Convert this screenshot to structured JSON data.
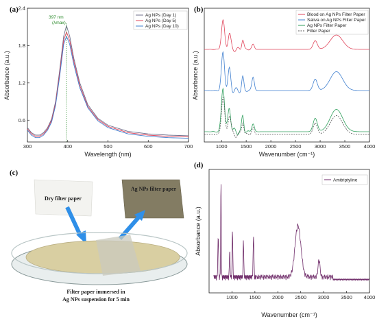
{
  "panels": {
    "a": {
      "label": "(a)"
    },
    "b": {
      "label": "(b)"
    },
    "c": {
      "label": "(c)"
    },
    "d": {
      "label": "(d)"
    }
  },
  "chart_data": [
    {
      "type": "line",
      "panel": "(a)",
      "xlabel": "Wavelength (nm)",
      "ylabel": "Absorbance (a.u.)",
      "xlim": [
        300,
        700
      ],
      "ylim": [
        0.25,
        2.4
      ],
      "xticks": [
        300,
        400,
        500,
        600,
        700
      ],
      "yticks": [
        0.6,
        1.2,
        1.8,
        2.4
      ],
      "legend_position": "top-right",
      "annotation": {
        "text": "397 nm",
        "subtext": "(λmax)",
        "x": 397
      },
      "series": [
        {
          "name": "Ag NPs (Day 1)",
          "color": "#6d6d8a",
          "x": [
            300,
            310,
            320,
            330,
            340,
            350,
            360,
            370,
            380,
            390,
            397,
            405,
            415,
            430,
            450,
            475,
            500,
            550,
            600,
            650,
            700
          ],
          "y": [
            0.48,
            0.4,
            0.36,
            0.36,
            0.4,
            0.48,
            0.62,
            0.9,
            1.4,
            1.95,
            2.12,
            1.95,
            1.6,
            1.2,
            0.85,
            0.63,
            0.52,
            0.42,
            0.38,
            0.36,
            0.35
          ]
        },
        {
          "name": "Ag NPs (Day 5)",
          "color": "#e0455b",
          "x": [
            300,
            310,
            320,
            330,
            340,
            350,
            360,
            370,
            380,
            390,
            397,
            405,
            415,
            430,
            450,
            475,
            500,
            550,
            600,
            650,
            700
          ],
          "y": [
            0.46,
            0.38,
            0.34,
            0.34,
            0.38,
            0.46,
            0.6,
            0.87,
            1.35,
            1.88,
            2.02,
            1.88,
            1.55,
            1.16,
            0.82,
            0.61,
            0.5,
            0.4,
            0.36,
            0.34,
            0.33
          ]
        },
        {
          "name": "Ag NPs (Day 10)",
          "color": "#3f7fcf",
          "x": [
            300,
            310,
            320,
            330,
            340,
            350,
            360,
            370,
            380,
            390,
            397,
            405,
            415,
            430,
            450,
            475,
            500,
            550,
            600,
            650,
            700
          ],
          "y": [
            0.44,
            0.36,
            0.32,
            0.32,
            0.36,
            0.44,
            0.57,
            0.84,
            1.3,
            1.82,
            1.95,
            1.82,
            1.5,
            1.12,
            0.8,
            0.59,
            0.48,
            0.38,
            0.34,
            0.32,
            0.31
          ]
        }
      ]
    },
    {
      "type": "line",
      "panel": "(b)",
      "xlabel": "Wavenumber (cm⁻¹)",
      "ylabel": "Absorbance (a.u.)",
      "xlim": [
        650,
        4000
      ],
      "xticks": [
        1000,
        1500,
        2000,
        2500,
        3000,
        3500,
        4000
      ],
      "yticks_shown": false,
      "legend_position": "top-right",
      "series": [
        {
          "name": "Blood on Ag NPs Filter Paper",
          "color": "#e0455b",
          "dash": false
        },
        {
          "name": "Saliva on Ag NPs Filter Paper",
          "color": "#3f7fcf",
          "dash": false
        },
        {
          "name": "Ag NPs Filter Paper",
          "color": "#2e9e5b",
          "dash": false
        },
        {
          "name": "Filter Paper",
          "color": "#555555",
          "dash": true
        }
      ]
    },
    {
      "type": "line",
      "panel": "(d)",
      "xlabel": "Wavenumber (cm⁻¹)",
      "ylabel": "Absorbance (a.u.)",
      "xlim": [
        500,
        4000
      ],
      "xticks": [
        1000,
        1500,
        2000,
        2500,
        3000,
        3500,
        4000
      ],
      "yticks_shown": false,
      "legend_position": "top-right",
      "series": [
        {
          "name": "Amitriptyline",
          "color": "#6e2a68"
        }
      ]
    }
  ],
  "photo": {
    "dry_label": "Dry filter paper",
    "ag_label": "Ag NPs filter paper",
    "caption_line1": "Filter paper immersed in",
    "caption_line2": "Ag NPs suspension for 5 min"
  }
}
